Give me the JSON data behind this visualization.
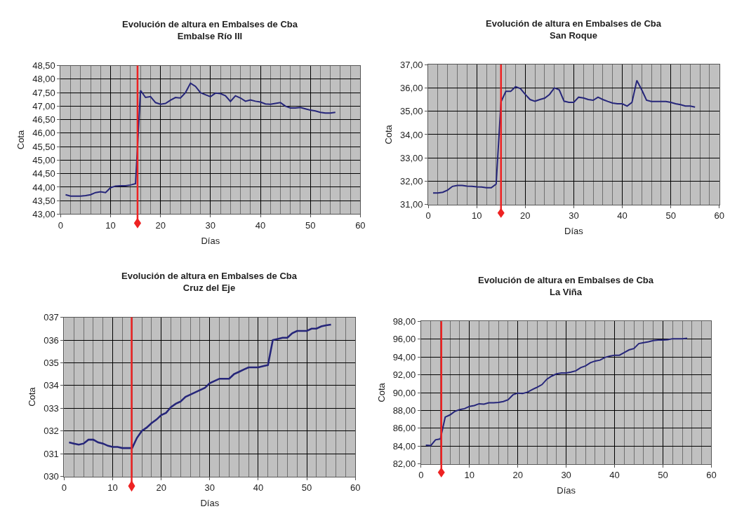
{
  "chart_data": [
    {
      "type": "line",
      "title": "Evolución de altura en Embalses de Cba",
      "subtitle": "Embalse Río III",
      "xlabel": "Días",
      "ylabel": "Cota",
      "x": [
        1,
        2,
        3,
        4,
        5,
        6,
        7,
        8,
        9,
        10,
        11,
        12,
        13,
        14,
        15,
        16,
        17,
        18,
        19,
        20,
        21,
        22,
        23,
        24,
        25,
        26,
        27,
        28,
        29,
        30,
        31,
        32,
        33,
        34,
        35,
        36,
        37,
        38,
        39,
        40,
        41,
        42,
        43,
        44,
        45,
        46,
        47,
        48,
        49,
        50,
        51,
        52,
        53,
        54,
        55
      ],
      "series": [
        {
          "color": "#26267a",
          "values": [
            43.72,
            43.67,
            43.67,
            43.67,
            43.69,
            43.72,
            43.8,
            43.83,
            43.8,
            43.98,
            44.04,
            44.05,
            44.05,
            44.08,
            44.13,
            47.58,
            47.32,
            47.35,
            47.13,
            47.07,
            47.1,
            47.22,
            47.32,
            47.3,
            47.5,
            47.85,
            47.73,
            47.5,
            47.42,
            47.35,
            47.48,
            47.46,
            47.38,
            47.17,
            47.38,
            47.3,
            47.18,
            47.23,
            47.18,
            47.15,
            47.08,
            47.07,
            47.1,
            47.13,
            47.0,
            46.93,
            46.93,
            46.95,
            46.9,
            46.85,
            46.82,
            46.77,
            46.74,
            46.74,
            46.77
          ]
        }
      ],
      "xlim": [
        0,
        60
      ],
      "xticks": [
        0,
        10,
        20,
        30,
        40,
        50,
        60
      ],
      "ylim": [
        43,
        48.5
      ],
      "yticks": [
        {
          "value": 43,
          "label": "43,00"
        },
        {
          "value": 43.5,
          "label": "43,50"
        },
        {
          "value": 44,
          "label": "44,00"
        },
        {
          "value": 44.5,
          "label": "44,50"
        },
        {
          "value": 45,
          "label": "45,00"
        },
        {
          "value": 45.5,
          "label": "45,50"
        },
        {
          "value": 46,
          "label": "46,00"
        },
        {
          "value": 46.5,
          "label": "46,50"
        },
        {
          "value": 47,
          "label": "47,00"
        },
        {
          "value": 47.5,
          "label": "47,50"
        },
        {
          "value": 48,
          "label": "48,00"
        },
        {
          "value": 48.5,
          "label": "48,50"
        }
      ],
      "ref_lines": [
        {
          "axis": "x",
          "value": 15.4,
          "color": "#ee2222"
        }
      ],
      "grid": true,
      "marker": "none",
      "line_style": "solid"
    },
    {
      "type": "line",
      "title": "Evolución de altura en Embalses de Cba",
      "subtitle": "San Roque",
      "xlabel": "Días",
      "ylabel": "Cota",
      "x": [
        1,
        2,
        3,
        4,
        5,
        6,
        7,
        8,
        9,
        10,
        11,
        12,
        13,
        14,
        15,
        16,
        17,
        18,
        19,
        20,
        21,
        22,
        23,
        24,
        25,
        26,
        27,
        28,
        29,
        30,
        31,
        32,
        33,
        34,
        35,
        36,
        37,
        38,
        39,
        40,
        41,
        42,
        43,
        44,
        45,
        46,
        47,
        48,
        49,
        50,
        51,
        52,
        53,
        54,
        55
      ],
      "series": [
        {
          "color": "#26267a",
          "values": [
            31.5,
            31.5,
            31.53,
            31.62,
            31.78,
            31.82,
            31.82,
            31.79,
            31.78,
            31.76,
            31.75,
            31.72,
            31.72,
            31.88,
            35.4,
            35.85,
            35.85,
            36.05,
            35.97,
            35.72,
            35.5,
            35.43,
            35.5,
            35.56,
            35.72,
            36.0,
            35.92,
            35.43,
            35.38,
            35.38,
            35.6,
            35.57,
            35.5,
            35.47,
            35.6,
            35.5,
            35.42,
            35.35,
            35.32,
            35.32,
            35.22,
            35.38,
            36.32,
            35.92,
            35.47,
            35.42,
            35.42,
            35.42,
            35.42,
            35.38,
            35.32,
            35.28,
            35.22,
            35.22,
            35.18
          ]
        }
      ],
      "xlim": [
        0,
        60
      ],
      "xticks": [
        0,
        10,
        20,
        30,
        40,
        50,
        60
      ],
      "ylim": [
        31,
        37
      ],
      "yticks": [
        {
          "value": 31,
          "label": "31,00"
        },
        {
          "value": 32,
          "label": "32,00"
        },
        {
          "value": 33,
          "label": "33,00"
        },
        {
          "value": 34,
          "label": "34,00"
        },
        {
          "value": 35,
          "label": "35,00"
        },
        {
          "value": 36,
          "label": "36,00"
        },
        {
          "value": 37,
          "label": "37,00"
        }
      ],
      "ref_lines": [
        {
          "axis": "x",
          "value": 15,
          "color": "#ee2222"
        }
      ],
      "grid": true,
      "marker": "none",
      "line_style": "solid"
    },
    {
      "type": "line",
      "title": "Evolución de altura en Embalses de Cba",
      "subtitle": "Cruz del Eje",
      "xlabel": "Días",
      "ylabel": "Cota",
      "x": [
        1,
        2,
        3,
        4,
        5,
        6,
        7,
        8,
        9,
        10,
        11,
        12,
        13,
        14,
        15,
        16,
        17,
        18,
        19,
        20,
        21,
        22,
        23,
        24,
        25,
        26,
        27,
        28,
        29,
        30,
        31,
        32,
        33,
        34,
        35,
        36,
        37,
        38,
        39,
        40,
        41,
        42,
        43,
        44,
        45,
        46,
        47,
        48,
        49,
        50,
        51,
        52,
        53,
        54,
        55
      ],
      "series": [
        {
          "color": "#26267a",
          "values": [
            31.5,
            31.45,
            31.4,
            31.45,
            31.62,
            31.62,
            31.5,
            31.45,
            31.35,
            31.3,
            31.3,
            31.25,
            31.25,
            31.25,
            31.7,
            32.0,
            32.15,
            32.35,
            32.5,
            32.7,
            32.8,
            33.05,
            33.2,
            33.3,
            33.5,
            33.6,
            33.7,
            33.8,
            33.9,
            34.1,
            34.2,
            34.3,
            34.3,
            34.3,
            34.5,
            34.6,
            34.7,
            34.8,
            34.8,
            34.8,
            34.85,
            34.9,
            36.0,
            36.05,
            36.1,
            36.1,
            36.3,
            36.4,
            36.4,
            36.4,
            36.5,
            36.5,
            36.6,
            36.65,
            36.68
          ]
        }
      ],
      "xlim": [
        0,
        60
      ],
      "xticks": [
        0,
        10,
        20,
        30,
        40,
        50,
        60
      ],
      "ylim": [
        30,
        37
      ],
      "yticks": [
        {
          "value": 30,
          "label": "030"
        },
        {
          "value": 31,
          "label": "031"
        },
        {
          "value": 32,
          "label": "032"
        },
        {
          "value": 33,
          "label": "033"
        },
        {
          "value": 34,
          "label": "034"
        },
        {
          "value": 35,
          "label": "035"
        },
        {
          "value": 36,
          "label": "036"
        },
        {
          "value": 37,
          "label": "037"
        }
      ],
      "ref_lines": [
        {
          "axis": "x",
          "value": 13.9,
          "color": "#ee2222"
        }
      ],
      "grid": true,
      "marker": "none",
      "line_style": "solid"
    },
    {
      "type": "line",
      "title": "Evolución de altura en Embalses de Cba",
      "subtitle": "La Viña",
      "xlabel": "Días",
      "ylabel": "Cota",
      "x": [
        1,
        2,
        3,
        4,
        5,
        6,
        7,
        8,
        9,
        10,
        11,
        12,
        13,
        14,
        15,
        16,
        17,
        18,
        19,
        20,
        21,
        22,
        23,
        24,
        25,
        26,
        27,
        28,
        29,
        30,
        31,
        32,
        33,
        34,
        35,
        36,
        37,
        38,
        39,
        40,
        41,
        42,
        43,
        44,
        45,
        46,
        47,
        48,
        49,
        50,
        51,
        52,
        53,
        54,
        55
      ],
      "series": [
        {
          "color": "#26267a",
          "values": [
            84.1,
            84.05,
            84.7,
            84.8,
            87.25,
            87.5,
            87.9,
            88.1,
            88.2,
            88.45,
            88.55,
            88.75,
            88.7,
            88.85,
            88.85,
            88.9,
            89.0,
            89.2,
            89.75,
            89.95,
            89.9,
            90.05,
            90.35,
            90.6,
            90.9,
            91.5,
            91.85,
            92.1,
            92.2,
            92.2,
            92.3,
            92.45,
            92.8,
            93.0,
            93.35,
            93.55,
            93.65,
            93.95,
            94.1,
            94.2,
            94.2,
            94.5,
            94.8,
            94.95,
            95.5,
            95.6,
            95.7,
            95.85,
            95.9,
            95.9,
            95.95,
            96.05,
            96.05,
            96.05,
            96.1
          ]
        }
      ],
      "xlim": [
        0,
        60
      ],
      "xticks": [
        0,
        10,
        20,
        30,
        40,
        50,
        60
      ],
      "ylim": [
        82,
        98
      ],
      "yticks": [
        {
          "value": 82,
          "label": "82,00"
        },
        {
          "value": 84,
          "label": "84,00"
        },
        {
          "value": 86,
          "label": "86,00"
        },
        {
          "value": 88,
          "label": "88,00"
        },
        {
          "value": 90,
          "label": "90,00"
        },
        {
          "value": 92,
          "label": "92,00"
        },
        {
          "value": 94,
          "label": "94,00"
        },
        {
          "value": 96,
          "label": "96,00"
        },
        {
          "value": 98,
          "label": "98,00"
        }
      ],
      "ref_lines": [
        {
          "axis": "x",
          "value": 4.2,
          "color": "#ee2222"
        }
      ],
      "grid": true,
      "marker": "none",
      "line_style": "solid"
    }
  ]
}
